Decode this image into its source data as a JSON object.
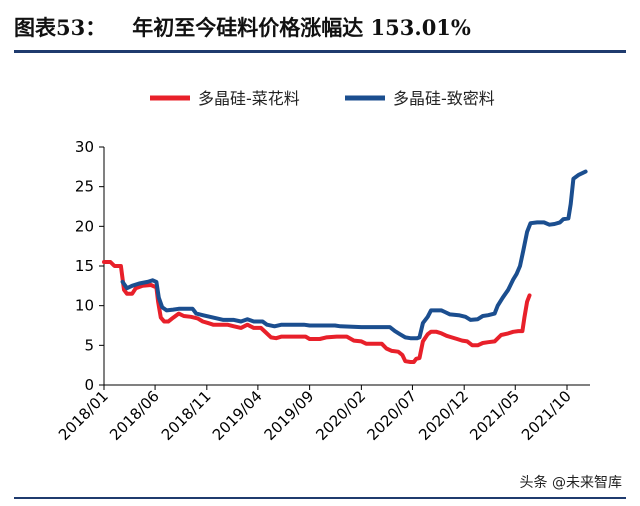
{
  "figure": {
    "label": "图表53：",
    "heading": "年初至今硅料价格涨幅达 153.01%"
  },
  "watermark": "头条 @未来智库",
  "chart_data": {
    "type": "line",
    "yticks": [
      0,
      5,
      10,
      15,
      20,
      25,
      30
    ],
    "ylim": [
      0,
      30
    ],
    "xlim": [
      "2018-01-01",
      "2021-12-08"
    ],
    "xticks": [
      "2018/01",
      "2018/06",
      "2018/11",
      "2019/04",
      "2019/09",
      "2020/02",
      "2020/07",
      "2020/12",
      "2021/05",
      "2021/10"
    ],
    "xtick_dates": [
      "2018-01-01",
      "2018-06-01",
      "2018-11-01",
      "2019-04-01",
      "2019-09-01",
      "2020-02-01",
      "2020-07-01",
      "2020-12-01",
      "2021-05-01",
      "2021-10-01"
    ],
    "legend_position": "top",
    "grid": false,
    "series": [
      {
        "name": "多晶硅-菜花料",
        "color": "#e8202a",
        "points": [
          [
            "2018-01-01",
            15.5
          ],
          [
            "2018-01-20",
            15.5
          ],
          [
            "2018-02-01",
            15.0
          ],
          [
            "2018-02-20",
            15.0
          ],
          [
            "2018-03-01",
            12.0
          ],
          [
            "2018-03-10",
            11.5
          ],
          [
            "2018-03-25",
            11.5
          ],
          [
            "2018-04-05",
            12.2
          ],
          [
            "2018-04-25",
            12.5
          ],
          [
            "2018-05-20",
            12.6
          ],
          [
            "2018-06-05",
            12.3
          ],
          [
            "2018-06-10",
            10.5
          ],
          [
            "2018-06-18",
            8.5
          ],
          [
            "2018-06-28",
            8.0
          ],
          [
            "2018-07-10",
            8.0
          ],
          [
            "2018-07-25",
            8.5
          ],
          [
            "2018-08-10",
            9.0
          ],
          [
            "2018-08-25",
            8.7
          ],
          [
            "2018-09-15",
            8.6
          ],
          [
            "2018-10-05",
            8.4
          ],
          [
            "2018-10-20",
            8.0
          ],
          [
            "2018-11-05",
            7.8
          ],
          [
            "2018-11-20",
            7.6
          ],
          [
            "2019-01-01",
            7.6
          ],
          [
            "2019-01-20",
            7.4
          ],
          [
            "2019-02-10",
            7.2
          ],
          [
            "2019-03-01",
            7.6
          ],
          [
            "2019-03-20",
            7.2
          ],
          [
            "2019-04-10",
            7.2
          ],
          [
            "2019-04-25",
            6.6
          ],
          [
            "2019-05-10",
            6.0
          ],
          [
            "2019-05-25",
            5.9
          ],
          [
            "2019-06-10",
            6.1
          ],
          [
            "2019-08-20",
            6.1
          ],
          [
            "2019-09-01",
            5.8
          ],
          [
            "2019-10-01",
            5.8
          ],
          [
            "2019-10-20",
            6.0
          ],
          [
            "2019-11-20",
            6.1
          ],
          [
            "2019-12-20",
            6.1
          ],
          [
            "2020-01-10",
            5.6
          ],
          [
            "2020-02-01",
            5.5
          ],
          [
            "2020-02-15",
            5.2
          ],
          [
            "2020-03-10",
            5.2
          ],
          [
            "2020-04-01",
            5.2
          ],
          [
            "2020-04-15",
            4.6
          ],
          [
            "2020-05-01",
            4.3
          ],
          [
            "2020-05-20",
            4.2
          ],
          [
            "2020-06-01",
            3.8
          ],
          [
            "2020-06-10",
            3.0
          ],
          [
            "2020-06-25",
            2.9
          ],
          [
            "2020-07-05",
            2.9
          ],
          [
            "2020-07-12",
            3.3
          ],
          [
            "2020-07-22",
            3.4
          ],
          [
            "2020-08-01",
            5.5
          ],
          [
            "2020-08-15",
            6.4
          ],
          [
            "2020-08-25",
            6.7
          ],
          [
            "2020-09-10",
            6.7
          ],
          [
            "2020-09-25",
            6.5
          ],
          [
            "2020-10-10",
            6.2
          ],
          [
            "2020-10-25",
            6.0
          ],
          [
            "2020-11-10",
            5.8
          ],
          [
            "2020-11-25",
            5.6
          ],
          [
            "2020-12-10",
            5.5
          ],
          [
            "2020-12-25",
            5.0
          ],
          [
            "2021-01-10",
            5.0
          ],
          [
            "2021-01-25",
            5.3
          ],
          [
            "2021-02-10",
            5.4
          ],
          [
            "2021-03-01",
            5.5
          ],
          [
            "2021-03-20",
            6.3
          ],
          [
            "2021-04-10",
            6.5
          ],
          [
            "2021-04-25",
            6.7
          ],
          [
            "2021-05-10",
            6.8
          ],
          [
            "2021-05-22",
            6.8
          ],
          [
            "2021-05-28",
            8.5
          ],
          [
            "2021-06-05",
            10.5
          ],
          [
            "2021-06-12",
            11.3
          ]
        ]
      },
      {
        "name": "多晶硅-致密料",
        "color": "#1b4e8f",
        "points": [
          [
            "2018-02-25",
            13.0
          ],
          [
            "2018-03-10",
            12.2
          ],
          [
            "2018-03-25",
            12.5
          ],
          [
            "2018-04-15",
            12.8
          ],
          [
            "2018-05-10",
            13.0
          ],
          [
            "2018-05-25",
            13.2
          ],
          [
            "2018-06-05",
            13.0
          ],
          [
            "2018-06-12",
            11.0
          ],
          [
            "2018-06-22",
            9.8
          ],
          [
            "2018-07-05",
            9.4
          ],
          [
            "2018-07-25",
            9.5
          ],
          [
            "2018-08-10",
            9.6
          ],
          [
            "2018-09-20",
            9.6
          ],
          [
            "2018-10-01",
            9.0
          ],
          [
            "2018-10-20",
            8.8
          ],
          [
            "2018-11-10",
            8.6
          ],
          [
            "2018-12-01",
            8.4
          ],
          [
            "2018-12-20",
            8.2
          ],
          [
            "2019-01-20",
            8.2
          ],
          [
            "2019-02-10",
            8.0
          ],
          [
            "2019-03-01",
            8.3
          ],
          [
            "2019-03-20",
            8.0
          ],
          [
            "2019-04-15",
            8.0
          ],
          [
            "2019-04-28",
            7.6
          ],
          [
            "2019-05-20",
            7.4
          ],
          [
            "2019-06-10",
            7.6
          ],
          [
            "2019-08-15",
            7.6
          ],
          [
            "2019-09-01",
            7.5
          ],
          [
            "2019-11-15",
            7.5
          ],
          [
            "2019-12-01",
            7.4
          ],
          [
            "2020-02-01",
            7.3
          ],
          [
            "2020-03-01",
            7.3
          ],
          [
            "2020-04-25",
            7.3
          ],
          [
            "2020-05-10",
            6.8
          ],
          [
            "2020-05-25",
            6.4
          ],
          [
            "2020-06-10",
            6.0
          ],
          [
            "2020-06-25",
            5.9
          ],
          [
            "2020-07-15",
            5.9
          ],
          [
            "2020-07-22",
            6.0
          ],
          [
            "2020-08-01",
            7.8
          ],
          [
            "2020-08-15",
            8.6
          ],
          [
            "2020-08-25",
            9.4
          ],
          [
            "2020-09-25",
            9.4
          ],
          [
            "2020-10-05",
            9.2
          ],
          [
            "2020-10-20",
            8.9
          ],
          [
            "2020-11-15",
            8.8
          ],
          [
            "2020-12-05",
            8.6
          ],
          [
            "2020-12-20",
            8.2
          ],
          [
            "2021-01-10",
            8.3
          ],
          [
            "2021-01-25",
            8.7
          ],
          [
            "2021-02-10",
            8.8
          ],
          [
            "2021-03-01",
            9.0
          ],
          [
            "2021-03-10",
            10.0
          ],
          [
            "2021-03-25",
            11.0
          ],
          [
            "2021-04-10",
            12.0
          ],
          [
            "2021-04-25",
            13.3
          ],
          [
            "2021-05-05",
            14.0
          ],
          [
            "2021-05-15",
            15.0
          ],
          [
            "2021-05-25",
            17.0
          ],
          [
            "2021-06-05",
            19.3
          ],
          [
            "2021-06-15",
            20.4
          ],
          [
            "2021-07-05",
            20.5
          ],
          [
            "2021-07-25",
            20.5
          ],
          [
            "2021-08-10",
            20.2
          ],
          [
            "2021-08-25",
            20.3
          ],
          [
            "2021-09-10",
            20.5
          ],
          [
            "2021-09-20",
            20.9
          ],
          [
            "2021-10-05",
            21.0
          ],
          [
            "2021-10-12",
            22.8
          ],
          [
            "2021-10-20",
            26.0
          ],
          [
            "2021-11-05",
            26.5
          ],
          [
            "2021-11-25",
            26.9
          ]
        ]
      }
    ]
  }
}
